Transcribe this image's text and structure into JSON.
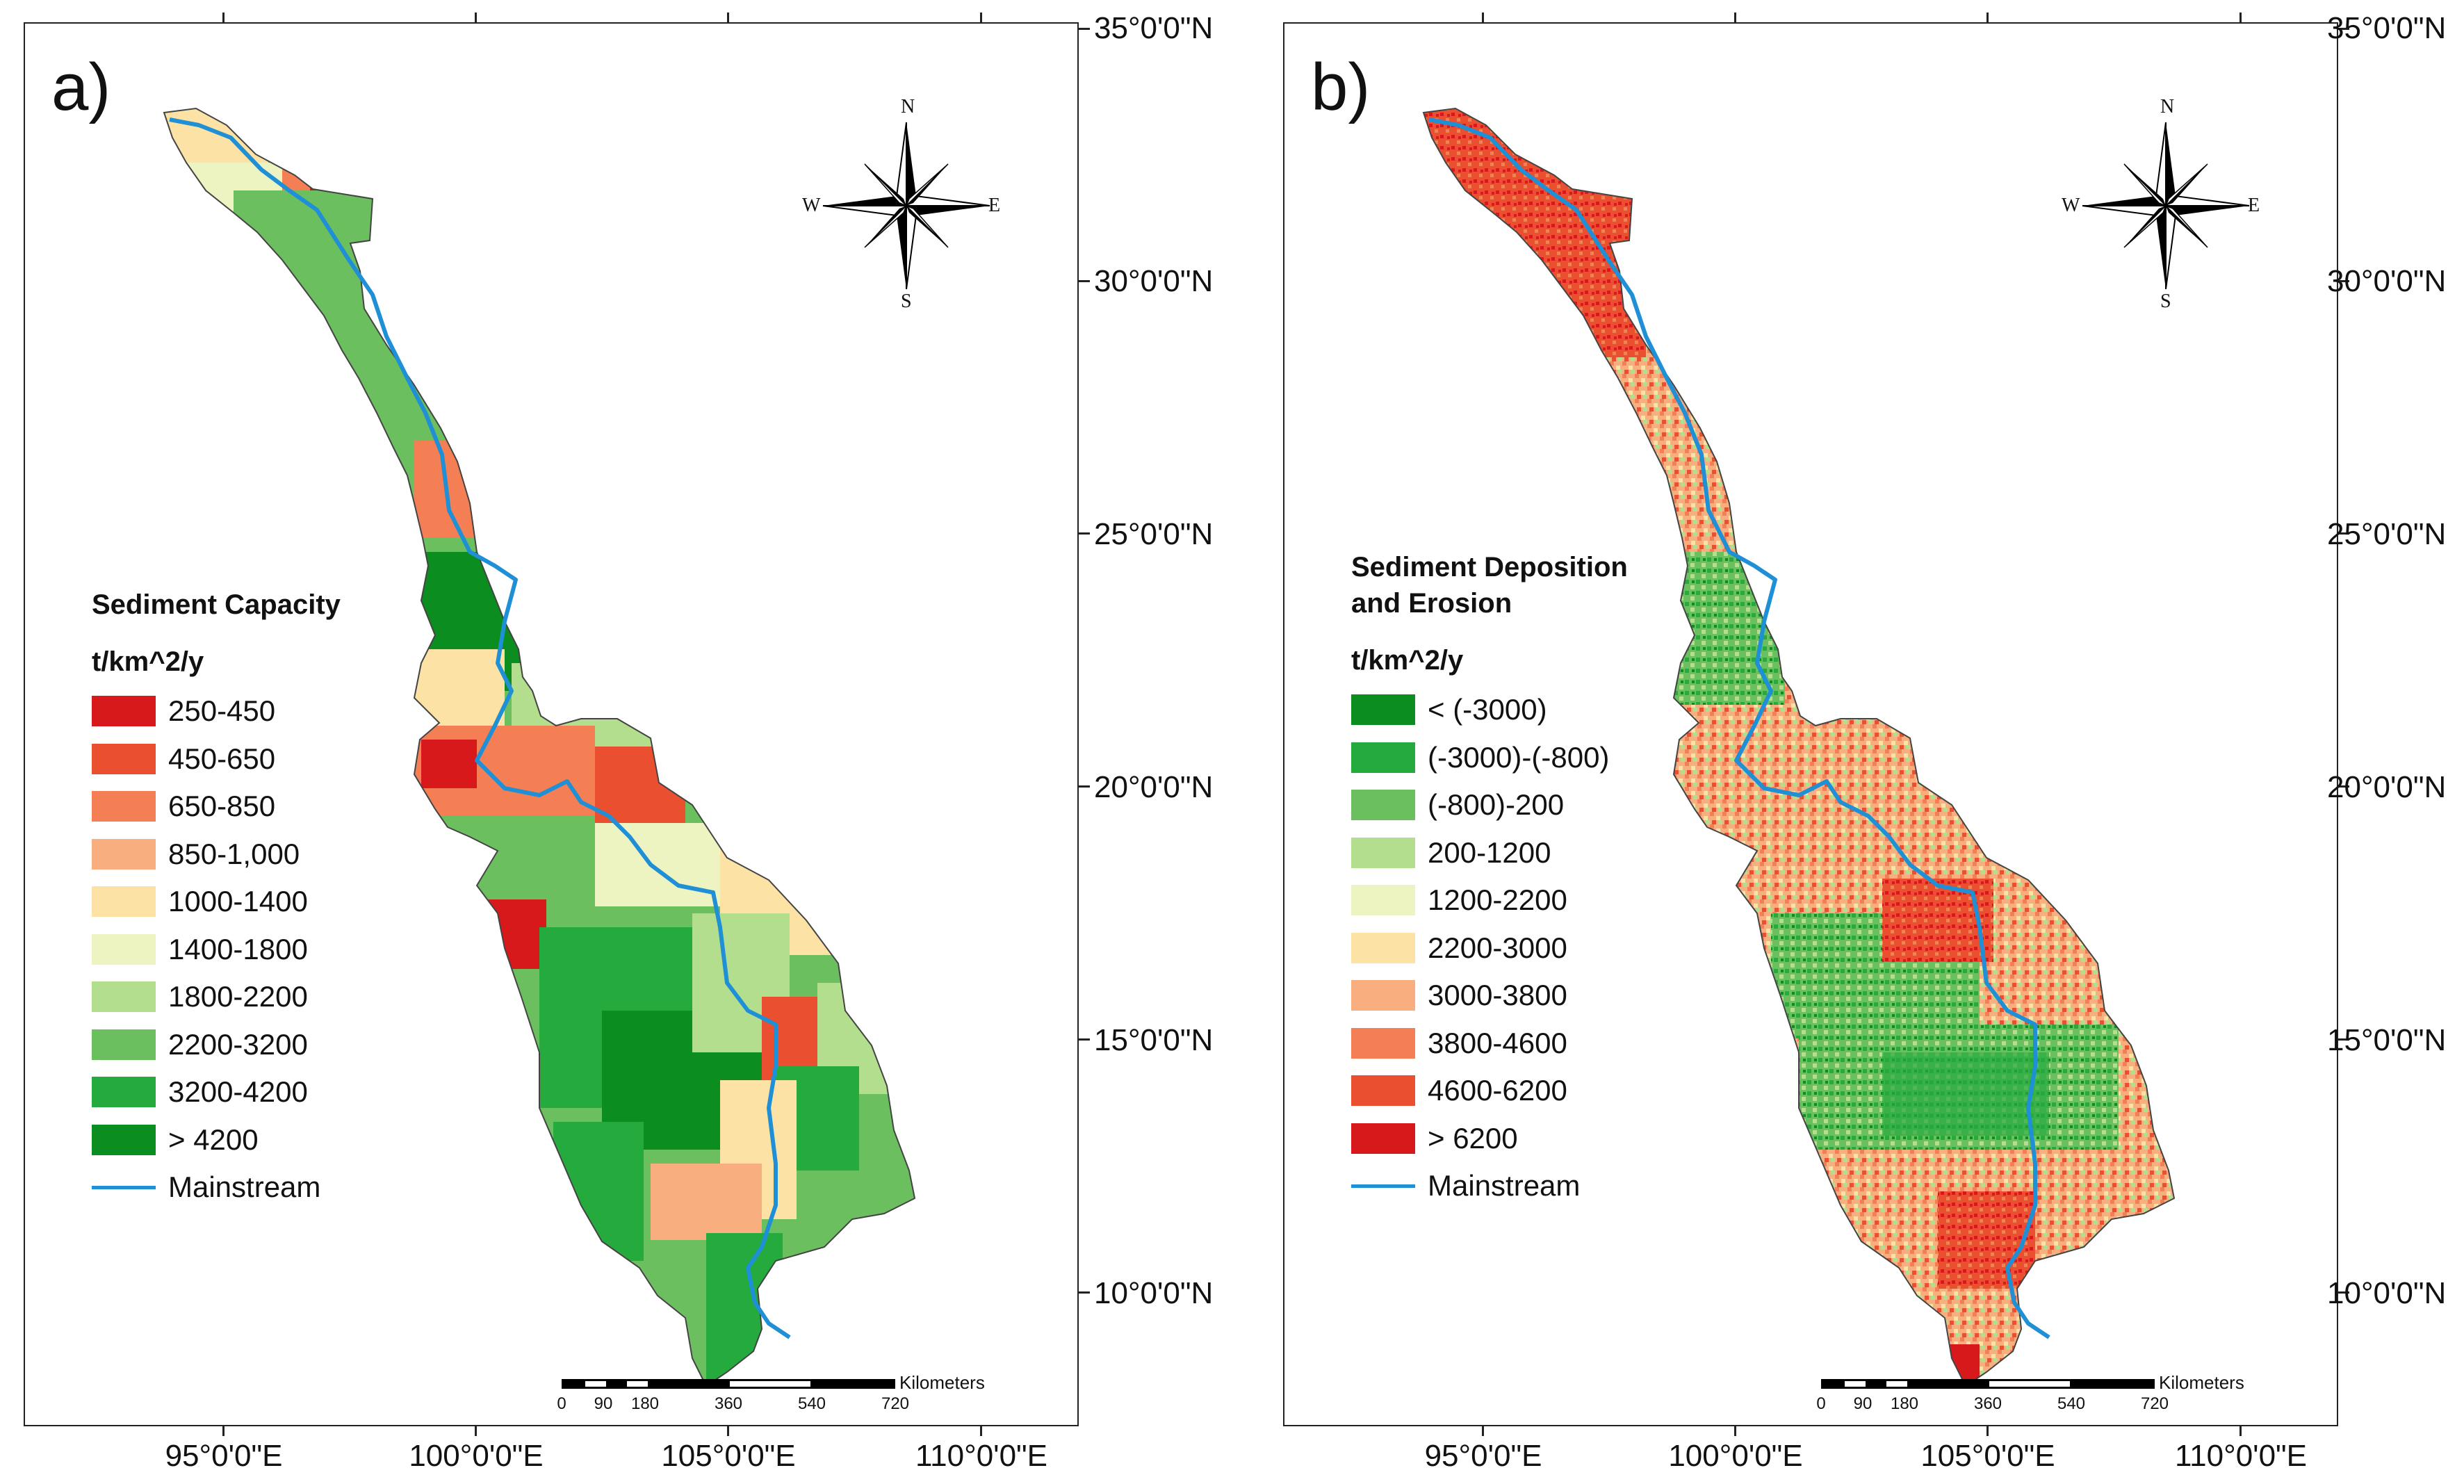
{
  "panels": [
    {
      "label": "a)",
      "legend_title": "Sediment Capacity",
      "legend_unit": "t/km^2/y",
      "classes": [
        {
          "label": "250-450",
          "color": "#d7191c"
        },
        {
          "label": "450-650",
          "color": "#ea4f2f"
        },
        {
          "label": "650-850",
          "color": "#f47f55"
        },
        {
          "label": "850-1,000",
          "color": "#f9ae80"
        },
        {
          "label": "1000-1400",
          "color": "#fde2a6"
        },
        {
          "label": "1400-1800",
          "color": "#eef3c2"
        },
        {
          "label": "1800-2200",
          "color": "#b3de8e"
        },
        {
          "label": "2200-3200",
          "color": "#6bbf5e"
        },
        {
          "label": "3200-4200",
          "color": "#25aa3e"
        },
        {
          "label": "> 4200",
          "color": "#0c8d1f"
        }
      ],
      "mainstream_label": "Mainstream"
    },
    {
      "label": "b)",
      "legend_title_line1": "Sediment Deposition",
      "legend_title_line2": "and Erosion",
      "legend_unit": "t/km^2/y",
      "classes": [
        {
          "label": "< (-3000)",
          "color": "#0c8d1f"
        },
        {
          "label": "(-3000)-(-800)",
          "color": "#25aa3e"
        },
        {
          "label": "(-800)-200",
          "color": "#6bbf5e"
        },
        {
          "label": "200-1200",
          "color": "#b3de8e"
        },
        {
          "label": "1200-2200",
          "color": "#eef3c2"
        },
        {
          "label": "2200-3000",
          "color": "#fde2a6"
        },
        {
          "label": "3000-3800",
          "color": "#f9ae80"
        },
        {
          "label": "3800-4600",
          "color": "#f47f55"
        },
        {
          "label": "4600-6200",
          "color": "#ea4f2f"
        },
        {
          "label": "> 6200",
          "color": "#d7191c"
        }
      ],
      "mainstream_label": "Mainstream"
    }
  ],
  "latitude_labels": [
    "35°0'0\"N",
    "30°0'0\"N",
    "25°0'0\"N",
    "20°0'0\"N",
    "15°0'0\"N",
    "10°0'0\"N"
  ],
  "longitude_labels": [
    "95°0'0\"E",
    "100°0'0\"E",
    "105°0'0\"E",
    "110°0'0\"E"
  ],
  "scale_bar": {
    "unit": "Kilometers",
    "ticks": [
      "0",
      "90",
      "180",
      "360",
      "540",
      "720"
    ]
  },
  "compass": {
    "north": "N",
    "south": "S",
    "east": "E",
    "west": "W"
  },
  "colors": {
    "river": "#1f8fd6",
    "frame": "#222222"
  }
}
